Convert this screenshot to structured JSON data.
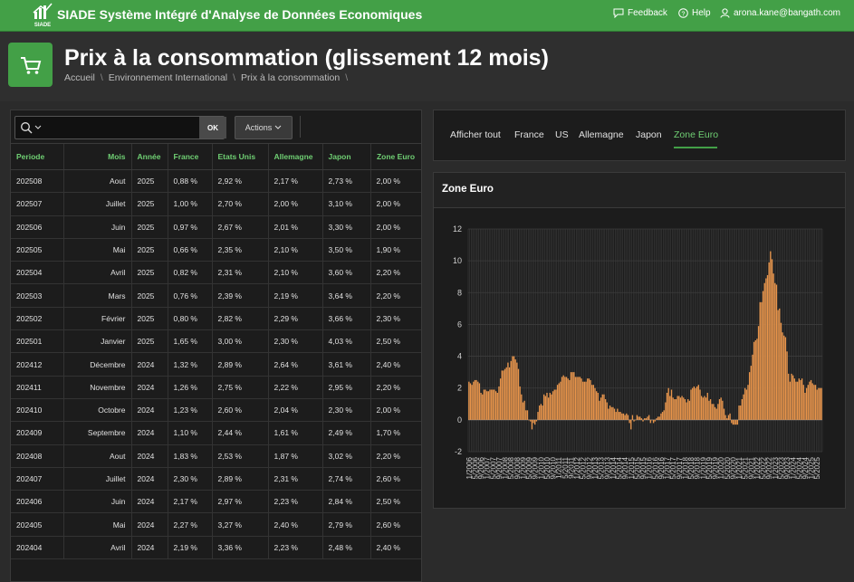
{
  "app": {
    "logo_text": "SIADE",
    "title": "SIADE Système Intégré d'Analyse de Données Economiques",
    "feedback": "Feedback",
    "help": "Help",
    "user": "arona.kane@bangath.com",
    "brand_color": "#43a047"
  },
  "page": {
    "title": "Prix à la consommation (glissement 12 mois)",
    "icon": "shopping-cart-icon",
    "breadcrumb": [
      "Accueil",
      "Environnement International",
      "Prix à la consommation"
    ]
  },
  "toolbar": {
    "ok_label": "OK",
    "actions_label": "Actions"
  },
  "table": {
    "columns": [
      "Periode",
      "Mois",
      "Année",
      "France",
      "Etats Unis",
      "Allemagne",
      "Japon",
      "Zone Euro"
    ],
    "rows": [
      [
        "202508",
        "Aout",
        "2025",
        "0,88 %",
        "2,92 %",
        "2,17 %",
        "2,73 %",
        "2,00 %"
      ],
      [
        "202507",
        "Juillet",
        "2025",
        "1,00 %",
        "2,70 %",
        "2,00 %",
        "3,10 %",
        "2,00 %"
      ],
      [
        "202506",
        "Juin",
        "2025",
        "0,97 %",
        "2,67 %",
        "2,01 %",
        "3,30 %",
        "2,00 %"
      ],
      [
        "202505",
        "Mai",
        "2025",
        "0,66 %",
        "2,35 %",
        "2,10 %",
        "3,50 %",
        "1,90 %"
      ],
      [
        "202504",
        "Avril",
        "2025",
        "0,82 %",
        "2,31 %",
        "2,10 %",
        "3,60 %",
        "2,20 %"
      ],
      [
        "202503",
        "Mars",
        "2025",
        "0,76 %",
        "2,39 %",
        "2,19 %",
        "3,64 %",
        "2,20 %"
      ],
      [
        "202502",
        "Février",
        "2025",
        "0,80 %",
        "2,82 %",
        "2,29 %",
        "3,66 %",
        "2,30 %"
      ],
      [
        "202501",
        "Janvier",
        "2025",
        "1,65 %",
        "3,00 %",
        "2,30 %",
        "4,03 %",
        "2,50 %"
      ],
      [
        "202412",
        "Décembre",
        "2024",
        "1,32 %",
        "2,89 %",
        "2,64 %",
        "3,61 %",
        "2,40 %"
      ],
      [
        "202411",
        "Novembre",
        "2024",
        "1,26 %",
        "2,75 %",
        "2,22 %",
        "2,95 %",
        "2,20 %"
      ],
      [
        "202410",
        "Octobre",
        "2024",
        "1,23 %",
        "2,60 %",
        "2,04 %",
        "2,30 %",
        "2,00 %"
      ],
      [
        "202409",
        "Septembre",
        "2024",
        "1,10 %",
        "2,44 %",
        "1,61 %",
        "2,49 %",
        "1,70 %"
      ],
      [
        "202408",
        "Aout",
        "2024",
        "1,83 %",
        "2,53 %",
        "1,87 %",
        "3,02 %",
        "2,20 %"
      ],
      [
        "202407",
        "Juillet",
        "2024",
        "2,30 %",
        "2,89 %",
        "2,31 %",
        "2,74 %",
        "2,60 %"
      ],
      [
        "202406",
        "Juin",
        "2024",
        "2,17 %",
        "2,97 %",
        "2,23 %",
        "2,84 %",
        "2,50 %"
      ],
      [
        "202405",
        "Mai",
        "2024",
        "2,27 %",
        "3,27 %",
        "2,40 %",
        "2,79 %",
        "2,60 %"
      ],
      [
        "202404",
        "Avril",
        "2024",
        "2,19 %",
        "3,36 %",
        "2,23 %",
        "2,48 %",
        "2,40 %"
      ]
    ]
  },
  "tabs": [
    {
      "label": "Afficher tout"
    },
    {
      "label": "France"
    },
    {
      "label": "US"
    },
    {
      "label": "Allemagne"
    },
    {
      "label": "Japon"
    },
    {
      "label": "Zone Euro",
      "active": true
    }
  ],
  "chart_panel_title": "Zone Euro",
  "chart_data": {
    "type": "bar",
    "title": "Zone Euro",
    "bar_color": "#e8944a",
    "ylim": [
      -2,
      12
    ],
    "yticks": [
      -2,
      0,
      2,
      4,
      6,
      8,
      10,
      12
    ],
    "start": "2006-01",
    "xtick_labels": [
      "1/2006",
      "5/2006",
      "9/2006",
      "1/2007",
      "5/2007",
      "9/2007",
      "1/2008",
      "5/2008",
      "9/2008",
      "1/2009",
      "5/2009",
      "9/2009",
      "1/2010",
      "5/2010",
      "9/2010",
      "1/2011",
      "5/2011",
      "9/2011",
      "1/2012",
      "5/2012",
      "9/2012",
      "1/2013",
      "5/2013",
      "9/2013",
      "1/2014",
      "5/2014",
      "9/2014",
      "1/2015",
      "5/2015",
      "9/2015",
      "1/2016",
      "5/2016",
      "9/2016",
      "1/2017",
      "5/2017",
      "9/2017",
      "1/2018",
      "5/2018",
      "9/2018",
      "1/2019",
      "5/2019",
      "9/2019",
      "1/2020",
      "5/2020",
      "9/2020",
      "1/2021",
      "5/2021",
      "9/2021",
      "1/2022",
      "5/2022",
      "9/2022",
      "1/2023",
      "5/2023",
      "9/2023",
      "1/2024",
      "5/2024",
      "9/2024",
      "1/2025",
      "5/2025"
    ],
    "values": [
      2.4,
      2.3,
      2.2,
      2.4,
      2.5,
      2.5,
      2.4,
      2.3,
      1.7,
      1.6,
      1.9,
      1.9,
      1.8,
      1.8,
      1.9,
      1.9,
      1.9,
      1.9,
      1.8,
      1.7,
      2.1,
      2.6,
      3.1,
      3.1,
      3.2,
      3.3,
      3.6,
      3.3,
      3.7,
      4.0,
      4.0,
      3.8,
      3.6,
      3.2,
      2.1,
      1.6,
      1.1,
      1.2,
      0.6,
      0.6,
      0.0,
      -0.1,
      -0.6,
      -0.2,
      -0.3,
      -0.1,
      0.5,
      0.9,
      1.0,
      0.9,
      1.6,
      1.5,
      1.7,
      1.4,
      1.7,
      1.6,
      1.8,
      1.9,
      1.9,
      2.2,
      2.3,
      2.4,
      2.7,
      2.8,
      2.7,
      2.7,
      2.6,
      2.5,
      3.0,
      3.0,
      3.0,
      2.7,
      2.7,
      2.7,
      2.7,
      2.6,
      2.4,
      2.4,
      2.4,
      2.6,
      2.6,
      2.5,
      2.2,
      2.2,
      2.0,
      1.8,
      1.7,
      1.2,
      1.4,
      1.6,
      1.6,
      1.3,
      1.1,
      0.7,
      0.9,
      0.8,
      0.8,
      0.7,
      0.5,
      0.7,
      0.5,
      0.5,
      0.4,
      0.4,
      0.3,
      0.4,
      0.3,
      -0.2,
      -0.6,
      0.3,
      -0.1,
      0.0,
      0.3,
      0.2,
      0.2,
      0.1,
      -0.1,
      0.1,
      0.1,
      0.2,
      0.3,
      -0.2,
      0.0,
      -0.2,
      -0.1,
      0.1,
      0.2,
      0.2,
      0.4,
      0.5,
      0.6,
      1.1,
      1.7,
      2.0,
      1.5,
      1.9,
      1.4,
      1.3,
      1.3,
      1.5,
      1.5,
      1.4,
      1.5,
      1.4,
      1.3,
      1.1,
      1.3,
      1.2,
      1.9,
      2.0,
      2.1,
      2.0,
      2.1,
      2.2,
      1.9,
      1.5,
      1.4,
      1.5,
      1.4,
      1.7,
      1.2,
      1.3,
      1.0,
      1.0,
      0.8,
      0.7,
      1.0,
      1.3,
      1.4,
      1.2,
      0.7,
      0.3,
      0.1,
      0.3,
      0.4,
      -0.2,
      -0.3,
      -0.3,
      -0.3,
      -0.3,
      0.9,
      0.9,
      1.3,
      1.6,
      2.0,
      1.9,
      2.2,
      3.0,
      3.4,
      4.1,
      4.9,
      5.0,
      5.1,
      5.9,
      7.4,
      7.4,
      8.1,
      8.6,
      8.9,
      9.1,
      9.9,
      10.6,
      10.1,
      9.2,
      8.6,
      8.5,
      6.9,
      7.0,
      6.1,
      5.5,
      5.3,
      5.2,
      4.3,
      2.9,
      2.4,
      2.9,
      2.8,
      2.6,
      2.4,
      2.4,
      2.6,
      2.5,
      2.6,
      2.2,
      1.7,
      2.0,
      2.2,
      2.4,
      2.5,
      2.3,
      2.2,
      2.2,
      1.9,
      2.0,
      2.0,
      2.0
    ]
  }
}
